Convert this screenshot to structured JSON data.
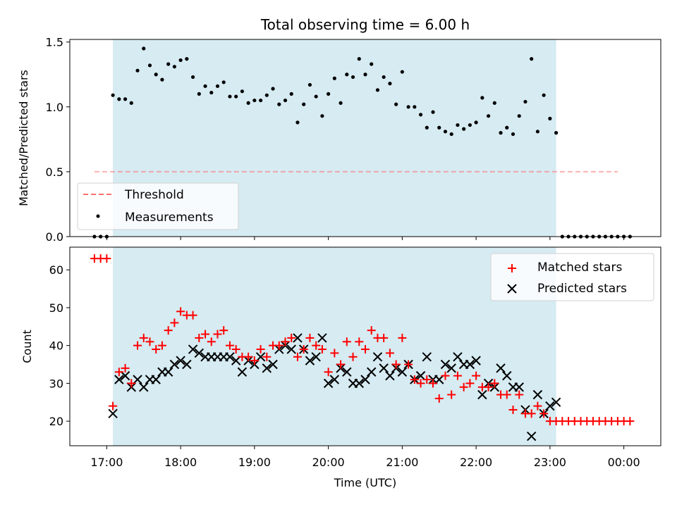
{
  "chart_data": [
    {
      "type": "scatter",
      "title": "Total observing time = 6.00 h",
      "xlabel": "",
      "ylabel": "Matched/Predicted stars",
      "ylim": [
        0,
        1.52
      ],
      "yticks": [
        "0.0",
        "0.5",
        "1.0",
        "1.5"
      ],
      "observing_window": [
        "17:05",
        "23:05"
      ],
      "grid": false,
      "legend_position": "lower-left",
      "threshold": {
        "name": "Threshold",
        "value": 0.5,
        "x_range": [
          "16:50",
          "23:55"
        ],
        "color": "#ff7070"
      },
      "series": [
        {
          "name": "Measurements",
          "color": "#000000",
          "x": [
            "16:50",
            "16:55",
            "17:00",
            "17:05",
            "17:10",
            "17:15",
            "17:20",
            "17:25",
            "17:30",
            "17:35",
            "17:40",
            "17:45",
            "17:50",
            "17:55",
            "18:00",
            "18:05",
            "18:10",
            "18:15",
            "18:20",
            "18:25",
            "18:30",
            "18:35",
            "18:40",
            "18:45",
            "18:50",
            "18:55",
            "19:00",
            "19:05",
            "19:10",
            "19:15",
            "19:20",
            "19:25",
            "19:30",
            "19:35",
            "19:40",
            "19:45",
            "19:50",
            "19:55",
            "20:00",
            "20:05",
            "20:10",
            "20:15",
            "20:20",
            "20:25",
            "20:30",
            "20:35",
            "20:40",
            "20:45",
            "20:50",
            "20:55",
            "21:00",
            "21:05",
            "21:10",
            "21:15",
            "21:20",
            "21:25",
            "21:30",
            "21:35",
            "21:40",
            "21:45",
            "21:50",
            "21:55",
            "22:00",
            "22:05",
            "22:10",
            "22:15",
            "22:20",
            "22:25",
            "22:30",
            "22:35",
            "22:40",
            "22:45",
            "22:50",
            "22:55",
            "23:00",
            "23:05",
            "23:10",
            "23:15",
            "23:20",
            "23:25",
            "23:30",
            "23:35",
            "23:40",
            "23:45",
            "23:50",
            "23:55",
            "00:00",
            "00:05"
          ],
          "y": [
            0,
            0,
            0,
            1.09,
            1.06,
            1.06,
            1.03,
            1.28,
            1.45,
            1.32,
            1.25,
            1.21,
            1.33,
            1.31,
            1.36,
            1.37,
            1.23,
            1.1,
            1.16,
            1.11,
            1.16,
            1.19,
            1.08,
            1.08,
            1.12,
            1.03,
            1.05,
            1.05,
            1.09,
            1.14,
            1.02,
            1.05,
            1.1,
            0.88,
            1.02,
            1.17,
            1.08,
            0.93,
            1.1,
            1.22,
            1.03,
            1.25,
            1.23,
            1.37,
            1.25,
            1.33,
            1.13,
            1.23,
            1.18,
            1.02,
            1.27,
            1.0,
            1.0,
            0.94,
            0.84,
            0.96,
            0.84,
            0.81,
            0.79,
            0.86,
            0.83,
            0.86,
            0.88,
            1.07,
            0.93,
            1.03,
            0.8,
            0.84,
            0.79,
            0.93,
            1.04,
            1.37,
            0.81,
            1.09,
            0.91,
            0.8,
            0,
            0,
            0,
            0,
            0,
            0,
            0,
            0,
            0,
            0,
            0,
            0
          ]
        }
      ]
    },
    {
      "type": "scatter",
      "title": "",
      "xlabel": "Time (UTC)",
      "ylabel": "Count",
      "ylim": [
        13.5,
        66
      ],
      "yticks": [
        "20",
        "30",
        "40",
        "50",
        "60"
      ],
      "xticks": [
        "17:00",
        "18:00",
        "19:00",
        "20:00",
        "21:00",
        "22:00",
        "23:00",
        "00:00"
      ],
      "observing_window": [
        "17:05",
        "23:05"
      ],
      "grid": false,
      "legend_position": "top-right",
      "series": [
        {
          "name": "Matched stars",
          "marker": "plus",
          "color": "#ff0000",
          "x": [
            "16:50",
            "16:55",
            "17:00",
            "17:05",
            "17:10",
            "17:15",
            "17:20",
            "17:25",
            "17:30",
            "17:35",
            "17:40",
            "17:45",
            "17:50",
            "17:55",
            "18:00",
            "18:05",
            "18:10",
            "18:15",
            "18:20",
            "18:25",
            "18:30",
            "18:35",
            "18:40",
            "18:45",
            "18:50",
            "18:55",
            "19:00",
            "19:05",
            "19:10",
            "19:15",
            "19:20",
            "19:25",
            "19:30",
            "19:35",
            "19:40",
            "19:45",
            "19:50",
            "19:55",
            "20:00",
            "20:05",
            "20:10",
            "20:15",
            "20:20",
            "20:25",
            "20:30",
            "20:35",
            "20:40",
            "20:45",
            "20:50",
            "20:55",
            "21:00",
            "21:05",
            "21:10",
            "21:15",
            "21:20",
            "21:25",
            "21:30",
            "21:35",
            "21:40",
            "21:45",
            "21:50",
            "21:55",
            "22:00",
            "22:05",
            "22:10",
            "22:15",
            "22:20",
            "22:25",
            "22:30",
            "22:35",
            "22:40",
            "22:45",
            "22:50",
            "22:55",
            "23:00",
            "23:05",
            "23:10",
            "23:15",
            "23:20",
            "23:25",
            "23:30",
            "23:35",
            "23:40",
            "23:45",
            "23:50",
            "23:55",
            "00:00",
            "00:05"
          ],
          "y": [
            63,
            63,
            63,
            24,
            33,
            34,
            30,
            40,
            42,
            41,
            39,
            40,
            44,
            46,
            49,
            48,
            48,
            42,
            43,
            41,
            43,
            44,
            40,
            39,
            37,
            37,
            36,
            39,
            37,
            40,
            40,
            41,
            42,
            37,
            39,
            42,
            40,
            39,
            33,
            38,
            35,
            41,
            37,
            41,
            39,
            44,
            42,
            42,
            38,
            35,
            42,
            35,
            31,
            30,
            31,
            30,
            26,
            32,
            27,
            32,
            29,
            30,
            32,
            29,
            29,
            30,
            27,
            27,
            23,
            27,
            22,
            22,
            24,
            22,
            20,
            20,
            20,
            20,
            20,
            20,
            20,
            20,
            20,
            20,
            20,
            20,
            20,
            20
          ]
        },
        {
          "name": "Predicted stars",
          "marker": "x",
          "color": "#000000",
          "x": [
            "17:05",
            "17:10",
            "17:15",
            "17:20",
            "17:25",
            "17:30",
            "17:35",
            "17:40",
            "17:45",
            "17:50",
            "17:55",
            "18:00",
            "18:05",
            "18:10",
            "18:15",
            "18:20",
            "18:25",
            "18:30",
            "18:35",
            "18:40",
            "18:45",
            "18:50",
            "18:55",
            "19:00",
            "19:05",
            "19:10",
            "19:15",
            "19:20",
            "19:25",
            "19:30",
            "19:35",
            "19:40",
            "19:45",
            "19:50",
            "19:55",
            "20:00",
            "20:05",
            "20:10",
            "20:15",
            "20:20",
            "20:25",
            "20:30",
            "20:35",
            "20:40",
            "20:45",
            "20:50",
            "20:55",
            "21:00",
            "21:05",
            "21:10",
            "21:15",
            "21:20",
            "21:25",
            "21:30",
            "21:35",
            "21:40",
            "21:45",
            "21:50",
            "21:55",
            "22:00",
            "22:05",
            "22:10",
            "22:15",
            "22:20",
            "22:25",
            "22:30",
            "22:35",
            "22:40",
            "22:45",
            "22:50",
            "22:55",
            "23:00",
            "23:05"
          ],
          "y": [
            22,
            31,
            32,
            29,
            31,
            29,
            31,
            31,
            33,
            33,
            35,
            36,
            35,
            39,
            38,
            37,
            37,
            37,
            37,
            37,
            36,
            33,
            36,
            35,
            37,
            34,
            35,
            39,
            40,
            39,
            42,
            39,
            36,
            37,
            42,
            30,
            31,
            34,
            33,
            30,
            30,
            31,
            33,
            37,
            34,
            32,
            34,
            33,
            35,
            31,
            32,
            37,
            31,
            31,
            35,
            34,
            37,
            35,
            35,
            36,
            27,
            30,
            29,
            34,
            32,
            29,
            29,
            23,
            16,
            27,
            22,
            24,
            25
          ]
        }
      ]
    }
  ]
}
